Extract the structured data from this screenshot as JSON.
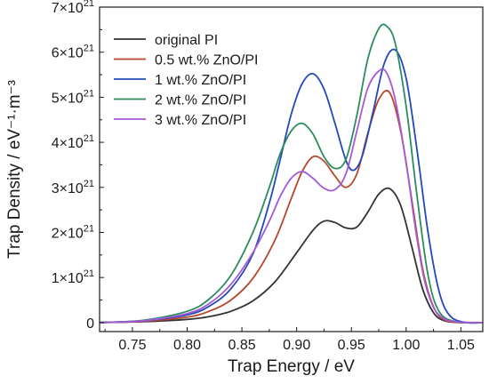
{
  "chart_data": {
    "type": "line",
    "xlabel": "Trap Energy / eV",
    "ylabel": "Trap Density / eV⁻¹·m⁻³",
    "xlim": [
      0.72,
      1.07
    ],
    "ylim": [
      -0.2,
      7.0
    ],
    "x_ticks": [
      0.75,
      0.8,
      0.85,
      0.9,
      0.95,
      1.0,
      1.05
    ],
    "x_tick_labels": [
      "0.75",
      "0.80",
      "0.85",
      "0.90",
      "0.95",
      "1.00",
      "1.05"
    ],
    "y_ticks": [
      0,
      1,
      2,
      3,
      4,
      5,
      6,
      7
    ],
    "y_tick_labels": [
      "0",
      "1×10²¹",
      "2×10²¹",
      "3×10²¹",
      "4×10²¹",
      "5×10²¹",
      "6×10²¹",
      "7×10²¹"
    ],
    "y_unit_multiplier": "10^21",
    "grid": false,
    "legend_position": "top-left",
    "series": [
      {
        "name": "original PI",
        "color": "#333333",
        "x": [
          0.72,
          0.76,
          0.8,
          0.82,
          0.84,
          0.86,
          0.88,
          0.9,
          0.915,
          0.925,
          0.935,
          0.945,
          0.955,
          0.965,
          0.975,
          0.985,
          0.995,
          1.005,
          1.015,
          1.025,
          1.035,
          1.05,
          1.07
        ],
        "values": [
          0.0,
          0.02,
          0.07,
          0.13,
          0.25,
          0.48,
          0.9,
          1.55,
          2.05,
          2.25,
          2.22,
          2.1,
          2.12,
          2.45,
          2.85,
          2.97,
          2.6,
          1.7,
          0.75,
          0.22,
          0.04,
          0.0,
          0.0
        ]
      },
      {
        "name": "0.5 wt.% ZnO/PI",
        "color": "#b5472c",
        "x": [
          0.72,
          0.76,
          0.8,
          0.82,
          0.84,
          0.86,
          0.88,
          0.895,
          0.905,
          0.915,
          0.925,
          0.935,
          0.945,
          0.955,
          0.965,
          0.975,
          0.985,
          0.995,
          1.005,
          1.015,
          1.025,
          1.035,
          1.05,
          1.07
        ],
        "values": [
          0.0,
          0.03,
          0.12,
          0.25,
          0.5,
          0.98,
          1.82,
          2.75,
          3.35,
          3.68,
          3.58,
          3.25,
          3.0,
          3.3,
          4.2,
          4.95,
          5.1,
          4.25,
          2.75,
          1.2,
          0.35,
          0.06,
          0.0,
          0.0
        ]
      },
      {
        "name": "1 wt.% ZnO/PI",
        "color": "#2348b9",
        "x": [
          0.72,
          0.76,
          0.8,
          0.82,
          0.84,
          0.86,
          0.875,
          0.885,
          0.895,
          0.905,
          0.915,
          0.925,
          0.935,
          0.945,
          0.952,
          0.96,
          0.97,
          0.98,
          0.99,
          1.0,
          1.01,
          1.02,
          1.03,
          1.04,
          1.055,
          1.07
        ],
        "values": [
          0.0,
          0.04,
          0.17,
          0.36,
          0.75,
          1.52,
          2.65,
          3.62,
          4.62,
          5.3,
          5.52,
          5.18,
          4.42,
          3.6,
          3.38,
          3.7,
          4.7,
          5.75,
          6.05,
          5.42,
          3.82,
          2.0,
          0.7,
          0.15,
          0.0,
          0.0
        ]
      },
      {
        "name": "2 wt.% ZnO/PI",
        "color": "#2b8d5d",
        "x": [
          0.72,
          0.76,
          0.8,
          0.82,
          0.84,
          0.86,
          0.875,
          0.885,
          0.895,
          0.905,
          0.915,
          0.925,
          0.935,
          0.945,
          0.955,
          0.965,
          0.975,
          0.982,
          0.99,
          1.0,
          1.01,
          1.02,
          1.03,
          1.045,
          1.07
        ],
        "values": [
          0.0,
          0.05,
          0.25,
          0.52,
          1.05,
          2.0,
          3.0,
          3.75,
          4.25,
          4.42,
          4.18,
          3.68,
          3.42,
          3.62,
          4.6,
          5.85,
          6.52,
          6.58,
          6.2,
          4.8,
          2.8,
          1.05,
          0.25,
          0.02,
          0.0
        ]
      },
      {
        "name": "3 wt.% ZnO/PI",
        "color": "#a45ad8",
        "x": [
          0.72,
          0.76,
          0.8,
          0.82,
          0.84,
          0.86,
          0.875,
          0.885,
          0.895,
          0.905,
          0.915,
          0.925,
          0.935,
          0.945,
          0.955,
          0.965,
          0.975,
          0.982,
          0.99,
          1.0,
          1.01,
          1.02,
          1.035,
          1.07
        ],
        "values": [
          0.0,
          0.04,
          0.2,
          0.42,
          0.85,
          1.55,
          2.25,
          2.8,
          3.2,
          3.35,
          3.2,
          2.98,
          2.95,
          3.3,
          4.25,
          5.2,
          5.58,
          5.55,
          4.95,
          3.55,
          1.85,
          0.65,
          0.08,
          0.0
        ]
      }
    ]
  }
}
